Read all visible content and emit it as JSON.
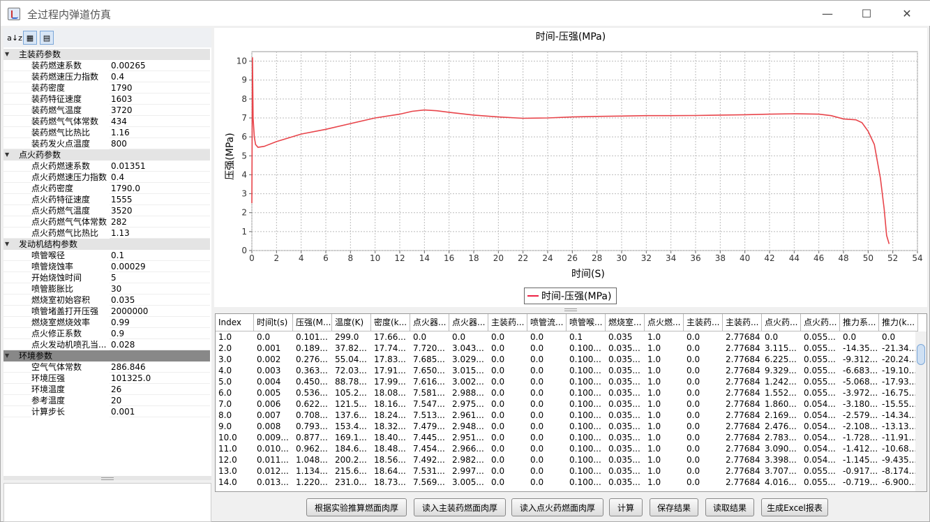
{
  "window": {
    "title": "全过程内弹道仿真",
    "controls": [
      "—",
      "☐",
      "✕"
    ]
  },
  "toolbar": {
    "sort_alpha": "a↓z",
    "categorized": "▦",
    "desc": "▤"
  },
  "tree": [
    {
      "cat": "主装药参数",
      "items": [
        [
          "装药燃速系数",
          "0.00265"
        ],
        [
          "装药燃速压力指数",
          "0.4"
        ],
        [
          "装药密度",
          "1790"
        ],
        [
          "装药特征速度",
          "1603"
        ],
        [
          "装药燃气温度",
          "3720"
        ],
        [
          "装药燃气气体常数",
          "434"
        ],
        [
          "装药燃气比热比",
          "1.16"
        ],
        [
          "装药发火点温度",
          "800"
        ]
      ]
    },
    {
      "cat": "点火药参数",
      "items": [
        [
          "点火药燃速系数",
          "0.01351"
        ],
        [
          "点火药燃速压力指数",
          "0.4"
        ],
        [
          "点火药密度",
          "1790.0"
        ],
        [
          "点火药特征速度",
          "1555"
        ],
        [
          "点火药燃气温度",
          "3520"
        ],
        [
          "点火药燃气气体常数",
          "282"
        ],
        [
          "点火药燃气比热比",
          "1.13"
        ]
      ]
    },
    {
      "cat": "发动机结构参数",
      "items": [
        [
          "喷管喉径",
          "0.1"
        ],
        [
          "喷管烧蚀率",
          "0.00029"
        ],
        [
          "开始烧蚀时间",
          "5"
        ],
        [
          "喷管膨胀比",
          "30"
        ],
        [
          "燃烧室初始容积",
          "0.035"
        ],
        [
          "喷管堵盖打开压强",
          "2000000"
        ],
        [
          "燃烧室燃烧效率",
          "0.99"
        ],
        [
          "点火修正系数",
          "0.9"
        ],
        [
          "点火发动机喷孔当...",
          "0.028"
        ]
      ]
    },
    {
      "cat": "环境参数",
      "selected": true,
      "items": [
        [
          "空气气体常数",
          "286.846"
        ],
        [
          "环境压强",
          "101325.0"
        ],
        [
          "环境温度",
          "26"
        ],
        [
          "参考温度",
          "20"
        ],
        [
          "计算步长",
          "0.001"
        ]
      ]
    }
  ],
  "chart_data": {
    "type": "line",
    "title": "时间-压强(MPa)",
    "xlabel": "时间(S)",
    "ylabel": "压强(MPa)",
    "xlim": [
      0,
      54
    ],
    "ylim": [
      0,
      10.5
    ],
    "xticks": [
      "0",
      "2",
      "4",
      "6",
      "8",
      "10",
      "12",
      "14",
      "16",
      "18",
      "20",
      "22",
      "24",
      "26",
      "28",
      "30",
      "32",
      "34",
      "36",
      "38",
      "40",
      "42",
      "44",
      "46",
      "48",
      "50",
      "52",
      "54"
    ],
    "yticks": [
      "0",
      "1",
      "2",
      "3",
      "4",
      "5",
      "6",
      "7",
      "8",
      "9",
      "10"
    ],
    "grid": true,
    "legend_position": "bottom",
    "series": [
      {
        "name": "时间-压强(MPa)",
        "color": "#e8444a",
        "x": [
          0,
          0.05,
          0.1,
          0.2,
          0.3,
          0.5,
          1,
          2,
          3,
          4,
          6,
          8,
          10,
          12,
          13,
          14,
          15,
          16,
          18,
          20,
          22,
          24,
          26,
          28,
          30,
          32,
          34,
          36,
          38,
          40,
          42,
          44,
          46,
          47,
          48,
          49,
          49.5,
          50,
          50.5,
          51,
          51.3,
          51.5,
          51.7
        ],
        "y": [
          2.5,
          10.2,
          7.0,
          6.0,
          5.6,
          5.45,
          5.5,
          5.75,
          5.95,
          6.15,
          6.4,
          6.7,
          7.0,
          7.2,
          7.35,
          7.42,
          7.38,
          7.3,
          7.15,
          7.05,
          6.98,
          7.0,
          7.05,
          7.08,
          7.1,
          7.12,
          7.12,
          7.13,
          7.15,
          7.17,
          7.2,
          7.22,
          7.2,
          7.12,
          6.95,
          6.9,
          6.75,
          6.3,
          5.6,
          3.8,
          2.2,
          0.8,
          0.35
        ]
      }
    ]
  },
  "table": {
    "columns": [
      "Index",
      "时间t(s)",
      "压强(M...",
      "温度(K)",
      "密度(k...",
      "点火器...",
      "点火器...",
      "主装药...",
      "喷管流...",
      "喷管喉...",
      "燃烧室...",
      "点火燃...",
      "主装药...",
      "主装药...",
      "点火药...",
      "点火药...",
      "推力系...",
      "推力(k..."
    ],
    "rows": [
      [
        "1.0",
        "0.0",
        "0.101...",
        "299.0",
        "17.66...",
        "0.0",
        "0.0",
        "0.0",
        "0.0",
        "0.1",
        "0.035",
        "1.0",
        "0.0",
        "2.77684",
        "0.0",
        "0.055...",
        "0.0",
        "0.0"
      ],
      [
        "2.0",
        "0.001",
        "0.189...",
        "37.82...",
        "17.74...",
        "7.720...",
        "3.043...",
        "0.0",
        "0.0",
        "0.100...",
        "0.035...",
        "1.0",
        "0.0",
        "2.77684",
        "3.115...",
        "0.055...",
        "-14.35...",
        "-21.34..."
      ],
      [
        "3.0",
        "0.002",
        "0.276...",
        "55.04...",
        "17.83...",
        "7.685...",
        "3.029...",
        "0.0",
        "0.0",
        "0.100...",
        "0.035...",
        "1.0",
        "0.0",
        "2.77684",
        "6.225...",
        "0.055...",
        "-9.312...",
        "-20.24..."
      ],
      [
        "4.0",
        "0.003",
        "0.363...",
        "72.03...",
        "17.91...",
        "7.650...",
        "3.015...",
        "0.0",
        "0.0",
        "0.100...",
        "0.035...",
        "1.0",
        "0.0",
        "2.77684",
        "9.329...",
        "0.055...",
        "-6.683...",
        "-19.10..."
      ],
      [
        "5.0",
        "0.004",
        "0.450...",
        "88.78...",
        "17.99...",
        "7.616...",
        "3.002...",
        "0.0",
        "0.0",
        "0.100...",
        "0.035...",
        "1.0",
        "0.0",
        "2.77684",
        "1.242...",
        "0.055...",
        "-5.068...",
        "-17.93..."
      ],
      [
        "6.0",
        "0.005",
        "0.536...",
        "105.2...",
        "18.08...",
        "7.581...",
        "2.988...",
        "0.0",
        "0.0",
        "0.100...",
        "0.035...",
        "1.0",
        "0.0",
        "2.77684",
        "1.552...",
        "0.055...",
        "-3.972...",
        "-16.75..."
      ],
      [
        "7.0",
        "0.006",
        "0.622...",
        "121.5...",
        "18.16...",
        "7.547...",
        "2.975...",
        "0.0",
        "0.0",
        "0.100...",
        "0.035...",
        "1.0",
        "0.0",
        "2.77684",
        "1.860...",
        "0.054...",
        "-3.180...",
        "-15.55..."
      ],
      [
        "8.0",
        "0.007",
        "0.708...",
        "137.6...",
        "18.24...",
        "7.513...",
        "2.961...",
        "0.0",
        "0.0",
        "0.100...",
        "0.035...",
        "1.0",
        "0.0",
        "2.77684",
        "2.169...",
        "0.054...",
        "-2.579...",
        "-14.34..."
      ],
      [
        "9.0",
        "0.008",
        "0.793...",
        "153.4...",
        "18.32...",
        "7.479...",
        "2.948...",
        "0.0",
        "0.0",
        "0.100...",
        "0.035...",
        "1.0",
        "0.0",
        "2.77684",
        "2.476...",
        "0.054...",
        "-2.108...",
        "-13.13..."
      ],
      [
        "10.0",
        "0.009...",
        "0.877...",
        "169.1...",
        "18.40...",
        "7.445...",
        "2.951...",
        "0.0",
        "0.0",
        "0.100...",
        "0.035...",
        "1.0",
        "0.0",
        "2.77684",
        "2.783...",
        "0.054...",
        "-1.728...",
        "-11.91..."
      ],
      [
        "11.0",
        "0.010...",
        "0.962...",
        "184.6...",
        "18.48...",
        "7.454...",
        "2.966...",
        "0.0",
        "0.0",
        "0.100...",
        "0.035...",
        "1.0",
        "0.0",
        "2.77684",
        "3.090...",
        "0.054...",
        "-1.412...",
        "-10.68..."
      ],
      [
        "12.0",
        "0.011...",
        "1.048...",
        "200.2...",
        "18.56...",
        "7.492...",
        "2.982...",
        "0.0",
        "0.0",
        "0.100...",
        "0.035...",
        "1.0",
        "0.0",
        "2.77684",
        "3.398...",
        "0.054...",
        "-1.145...",
        "-9.435..."
      ],
      [
        "13.0",
        "0.012...",
        "1.134...",
        "215.6...",
        "18.64...",
        "7.531...",
        "2.997...",
        "0.0",
        "0.0",
        "0.100...",
        "0.035...",
        "1.0",
        "0.0",
        "2.77684",
        "3.707...",
        "0.055...",
        "-0.917...",
        "-8.174..."
      ],
      [
        "14.0",
        "0.013...",
        "1.220...",
        "231.0...",
        "18.73...",
        "7.569...",
        "3.005...",
        "0.0",
        "0.0",
        "0.100...",
        "0.035...",
        "1.0",
        "0.0",
        "2.77684",
        "4.016...",
        "0.055...",
        "-0.719...",
        "-6.900..."
      ]
    ]
  },
  "buttons": [
    "根据实验推算燃面肉厚",
    "读入主装药燃面肉厚",
    "读入点火药燃面肉厚",
    "计算",
    "保存结果",
    "读取结果",
    "生成Excel报表"
  ]
}
